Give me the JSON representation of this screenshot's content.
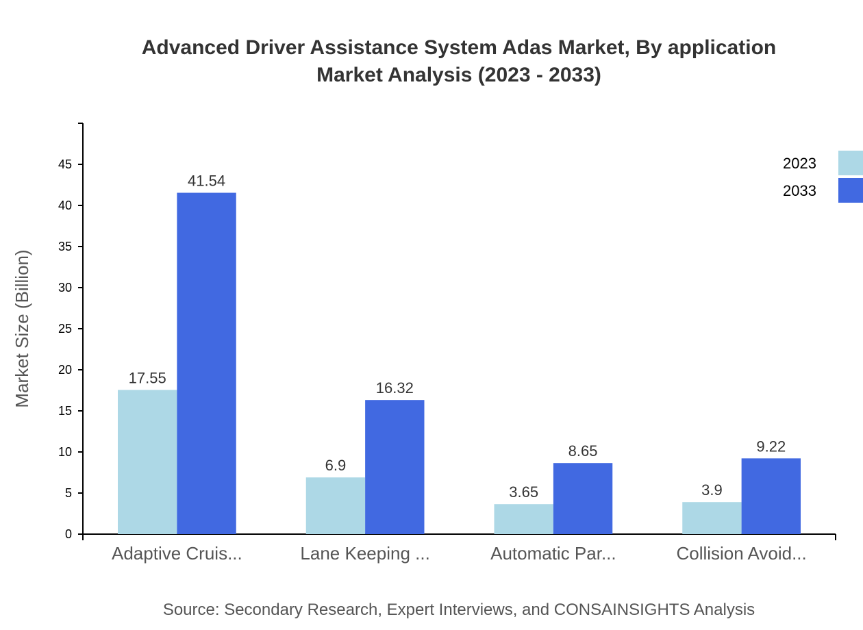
{
  "chart_data": {
    "type": "bar",
    "title_line1": "Advanced Driver Assistance System Adas Market, By application",
    "title_line2": "Market Analysis (2023 - 2033)",
    "xlabel": "",
    "ylabel": "Market Size (Billion)",
    "ylim": [
      0,
      50
    ],
    "yticks": [
      0,
      5,
      10,
      15,
      20,
      25,
      30,
      35,
      40,
      45
    ],
    "categories": [
      "Adaptive Cruis...",
      "Lane Keeping ...",
      "Automatic Par...",
      "Collision Avoid..."
    ],
    "series": [
      {
        "name": "2023",
        "color": "#ADD8E6",
        "values": [
          17.55,
          6.9,
          3.65,
          3.9
        ]
      },
      {
        "name": "2033",
        "color": "#4169E1",
        "values": [
          41.54,
          16.32,
          8.65,
          9.22
        ]
      }
    ],
    "legend_position": "top-right",
    "grid": false,
    "source": "Source: Secondary Research, Expert Interviews, and CONSAINSIGHTS Analysis"
  }
}
